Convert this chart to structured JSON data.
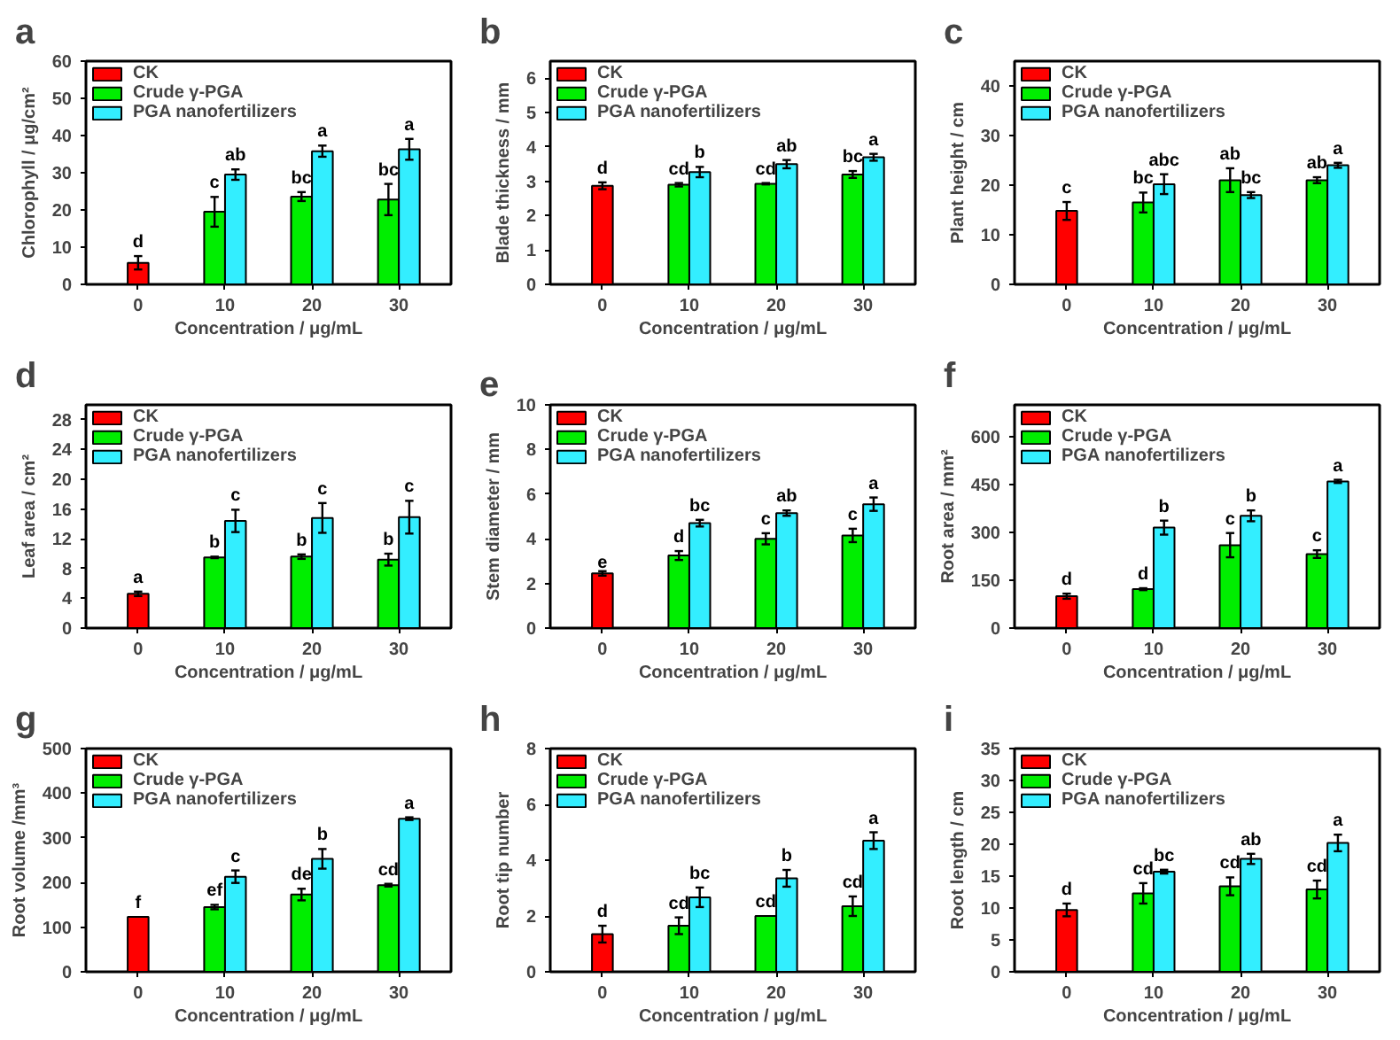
{
  "chart_data": [
    {
      "type": "bar",
      "title": "a",
      "xlabel": "Concentration / μg/mL",
      "ylabel": "Chlorophyll / μg/cm²",
      "categories": [
        "0",
        "10",
        "20",
        "30"
      ],
      "ylim": [
        0,
        60
      ],
      "yticks": [
        0,
        10,
        20,
        30,
        40,
        50,
        60
      ],
      "legend": "top left",
      "grid": false,
      "series": [
        {
          "name": "CK",
          "color": "#ff0000",
          "values": [
            5.8,
            null,
            null,
            null
          ],
          "errors": [
            1.8,
            null,
            null,
            null
          ],
          "value_labels": [
            "d",
            null,
            null,
            null
          ]
        },
        {
          "name": "Crude γ-PGA",
          "color": "#00ee00",
          "values": [
            null,
            19.5,
            23.6,
            22.8
          ],
          "errors": [
            null,
            4,
            1.2,
            4.2
          ],
          "value_labels": [
            null,
            "c",
            "bc",
            "bc"
          ]
        },
        {
          "name": "PGA nanofertilizers",
          "color": "#33eeff",
          "values": [
            null,
            29.5,
            35.8,
            36.3
          ],
          "errors": [
            null,
            1.4,
            1.5,
            2.8
          ],
          "value_labels": [
            null,
            "ab",
            "a",
            "a"
          ]
        }
      ]
    },
    {
      "type": "bar",
      "title": "b",
      "xlabel": "Concentration / μg/mL",
      "ylabel": "Blade thickness / mm",
      "categories": [
        "0",
        "10",
        "20",
        "30"
      ],
      "ylim": [
        0,
        6.5
      ],
      "yticks": [
        0,
        1,
        2,
        3,
        4,
        5,
        6
      ],
      "legend": "top left",
      "grid": false,
      "series": [
        {
          "name": "CK",
          "color": "#ff0000",
          "values": [
            2.87,
            null,
            null,
            null
          ],
          "errors": [
            0.1,
            null,
            null,
            null
          ],
          "value_labels": [
            "d",
            null,
            null,
            null
          ]
        },
        {
          "name": "Crude γ-PGA",
          "color": "#00ee00",
          "values": [
            null,
            2.9,
            2.93,
            3.2
          ],
          "errors": [
            null,
            0.05,
            0.02,
            0.1
          ],
          "value_labels": [
            null,
            "cd",
            "cd",
            "bc"
          ]
        },
        {
          "name": "PGA nanofertilizers",
          "color": "#33eeff",
          "values": [
            null,
            3.27,
            3.5,
            3.7
          ],
          "errors": [
            null,
            0.15,
            0.12,
            0.1
          ],
          "value_labels": [
            null,
            "b",
            "ab",
            "a"
          ]
        }
      ]
    },
    {
      "type": "bar",
      "title": "c",
      "xlabel": "Concentration / μg/mL",
      "ylabel": "Plant height / cm",
      "categories": [
        "0",
        "10",
        "20",
        "30"
      ],
      "ylim": [
        0,
        45
      ],
      "yticks": [
        0,
        10,
        20,
        30,
        40
      ],
      "legend": "top left",
      "grid": false,
      "series": [
        {
          "name": "CK",
          "color": "#ff0000",
          "values": [
            14.8,
            null,
            null,
            null
          ],
          "errors": [
            1.8,
            null,
            null,
            null
          ],
          "value_labels": [
            "c",
            null,
            null,
            null
          ]
        },
        {
          "name": "Crude γ-PGA",
          "color": "#00ee00",
          "values": [
            null,
            16.5,
            21,
            21
          ],
          "errors": [
            null,
            2,
            2.4,
            0.6
          ],
          "value_labels": [
            null,
            "bc",
            "ab",
            "ab"
          ]
        },
        {
          "name": "PGA nanofertilizers",
          "color": "#33eeff",
          "values": [
            null,
            20.2,
            18,
            24
          ],
          "errors": [
            null,
            2,
            0.6,
            0.5
          ],
          "value_labels": [
            null,
            "abc",
            "bc",
            "a"
          ]
        }
      ]
    },
    {
      "type": "bar",
      "title": "d",
      "xlabel": "Concentration / μg/mL",
      "ylabel": "Leaf area / cm²",
      "categories": [
        "0",
        "10",
        "20",
        "30"
      ],
      "ylim": [
        0,
        30
      ],
      "yticks": [
        0,
        4,
        8,
        12,
        16,
        20,
        24,
        28
      ],
      "legend": "top left",
      "grid": false,
      "series": [
        {
          "name": "CK",
          "color": "#ff0000",
          "values": [
            4.6,
            null,
            null,
            null
          ],
          "errors": [
            0.3,
            null,
            null,
            null
          ],
          "value_labels": [
            "a",
            null,
            null,
            null
          ]
        },
        {
          "name": "Crude γ-PGA",
          "color": "#00ee00",
          "values": [
            null,
            9.5,
            9.6,
            9.2
          ],
          "errors": [
            null,
            0.1,
            0.3,
            0.8
          ],
          "value_labels": [
            null,
            "b",
            "b",
            "b"
          ]
        },
        {
          "name": "PGA nanofertilizers",
          "color": "#33eeff",
          "values": [
            null,
            14.4,
            14.8,
            14.9
          ],
          "errors": [
            null,
            1.5,
            2,
            2.2
          ],
          "value_labels": [
            null,
            "c",
            "c",
            "c"
          ]
        }
      ]
    },
    {
      "type": "bar",
      "title": "e",
      "xlabel": "Concentration / μg/mL",
      "ylabel": "Stem diameter / mm",
      "categories": [
        "0",
        "10",
        "20",
        "30"
      ],
      "ylim": [
        0,
        10
      ],
      "yticks": [
        0,
        2,
        4,
        6,
        8,
        10
      ],
      "legend": "top left",
      "grid": false,
      "series": [
        {
          "name": "CK",
          "color": "#ff0000",
          "values": [
            2.45,
            null,
            null,
            null
          ],
          "errors": [
            0.1,
            null,
            null,
            null
          ],
          "value_labels": [
            "e",
            null,
            null,
            null
          ]
        },
        {
          "name": "Crude γ-PGA",
          "color": "#00ee00",
          "values": [
            null,
            3.25,
            4.0,
            4.15
          ],
          "errors": [
            null,
            0.2,
            0.25,
            0.3
          ],
          "value_labels": [
            null,
            "d",
            "c",
            "c"
          ]
        },
        {
          "name": "PGA nanofertilizers",
          "color": "#33eeff",
          "values": [
            null,
            4.7,
            5.15,
            5.55
          ],
          "errors": [
            null,
            0.15,
            0.12,
            0.3
          ],
          "value_labels": [
            null,
            "bc",
            "ab",
            "a"
          ]
        }
      ]
    },
    {
      "type": "bar",
      "title": "f",
      "xlabel": "Concentration / μg/mL",
      "ylabel": "Root area / mm²",
      "categories": [
        "0",
        "10",
        "20",
        "30"
      ],
      "ylim": [
        0,
        700
      ],
      "yticks": [
        0,
        150,
        300,
        450,
        600
      ],
      "legend": "top left",
      "grid": false,
      "series": [
        {
          "name": "CK",
          "color": "#ff0000",
          "values": [
            100,
            null,
            null,
            null
          ],
          "errors": [
            8,
            null,
            null,
            null
          ],
          "value_labels": [
            "d",
            null,
            null,
            null
          ]
        },
        {
          "name": "Crude γ-PGA",
          "color": "#00ee00",
          "values": [
            null,
            122,
            260,
            232
          ],
          "errors": [
            null,
            3,
            38,
            12
          ],
          "value_labels": [
            null,
            "d",
            "c",
            "c"
          ]
        },
        {
          "name": "PGA nanofertilizers",
          "color": "#33eeff",
          "values": [
            null,
            315,
            352,
            460
          ],
          "errors": [
            null,
            22,
            17,
            5
          ],
          "value_labels": [
            null,
            "b",
            "b",
            "a"
          ]
        }
      ]
    },
    {
      "type": "bar",
      "title": "g",
      "xlabel": "Concentration / μg/mL",
      "ylabel": "Root volume /mm³",
      "categories": [
        "0",
        "10",
        "20",
        "30"
      ],
      "ylim": [
        0,
        500
      ],
      "yticks": [
        0,
        100,
        200,
        300,
        400,
        500
      ],
      "legend": "top left",
      "grid": false,
      "series": [
        {
          "name": "CK",
          "color": "#ff0000",
          "values": [
            123,
            null,
            null,
            null
          ],
          "errors": [
            null,
            null,
            null,
            null
          ],
          "value_labels": [
            "f",
            null,
            null,
            null
          ]
        },
        {
          "name": "Crude γ-PGA",
          "color": "#00ee00",
          "values": [
            null,
            145,
            173,
            194
          ],
          "errors": [
            null,
            5,
            13,
            3
          ],
          "value_labels": [
            null,
            "ef",
            "de",
            "cd"
          ]
        },
        {
          "name": "PGA nanofertilizers",
          "color": "#33eeff",
          "values": [
            null,
            213,
            253,
            343
          ],
          "errors": [
            null,
            14,
            22,
            3
          ],
          "value_labels": [
            null,
            "c",
            "b",
            "a"
          ]
        }
      ]
    },
    {
      "type": "bar",
      "title": "h",
      "xlabel": "Concentration / μg/mL",
      "ylabel": "Root tip number",
      "categories": [
        "0",
        "10",
        "20",
        "30"
      ],
      "ylim": [
        0,
        8
      ],
      "yticks": [
        0,
        2,
        4,
        6,
        8
      ],
      "legend": "top left",
      "grid": false,
      "series": [
        {
          "name": "CK",
          "color": "#ff0000",
          "values": [
            1.35,
            null,
            null,
            null
          ],
          "errors": [
            0.3,
            null,
            null,
            null
          ],
          "value_labels": [
            "d",
            null,
            null,
            null
          ]
        },
        {
          "name": "Crude γ-PGA",
          "color": "#00ee00",
          "values": [
            null,
            1.65,
            2.0,
            2.35
          ],
          "errors": [
            null,
            0.3,
            null,
            0.35
          ],
          "value_labels": [
            null,
            "cd",
            "cd",
            "cd"
          ]
        },
        {
          "name": "PGA nanofertilizers",
          "color": "#33eeff",
          "values": [
            null,
            2.67,
            3.35,
            4.7
          ],
          "errors": [
            null,
            0.35,
            0.3,
            0.3
          ],
          "value_labels": [
            null,
            "bc",
            "b",
            "a"
          ]
        }
      ]
    },
    {
      "type": "bar",
      "title": "i",
      "xlabel": "Concentration / μg/mL",
      "ylabel": "Root length / cm",
      "categories": [
        "0",
        "10",
        "20",
        "30"
      ],
      "ylim": [
        0,
        35
      ],
      "yticks": [
        0,
        5,
        10,
        15,
        20,
        25,
        30,
        35
      ],
      "legend": "top left",
      "grid": false,
      "series": [
        {
          "name": "CK",
          "color": "#ff0000",
          "values": [
            9.7,
            null,
            null,
            null
          ],
          "errors": [
            1,
            null,
            null,
            null
          ],
          "value_labels": [
            "d",
            null,
            null,
            null
          ]
        },
        {
          "name": "Crude γ-PGA",
          "color": "#00ee00",
          "values": [
            null,
            12.3,
            13.4,
            12.9
          ],
          "errors": [
            null,
            1.6,
            1.4,
            1.4
          ],
          "value_labels": [
            null,
            "cd",
            "cd",
            "cd"
          ]
        },
        {
          "name": "PGA nanofertilizers",
          "color": "#33eeff",
          "values": [
            null,
            15.7,
            17.7,
            20.2
          ],
          "errors": [
            null,
            0.3,
            0.8,
            1.3
          ],
          "value_labels": [
            null,
            "bc",
            "ab",
            "a"
          ]
        }
      ]
    }
  ]
}
